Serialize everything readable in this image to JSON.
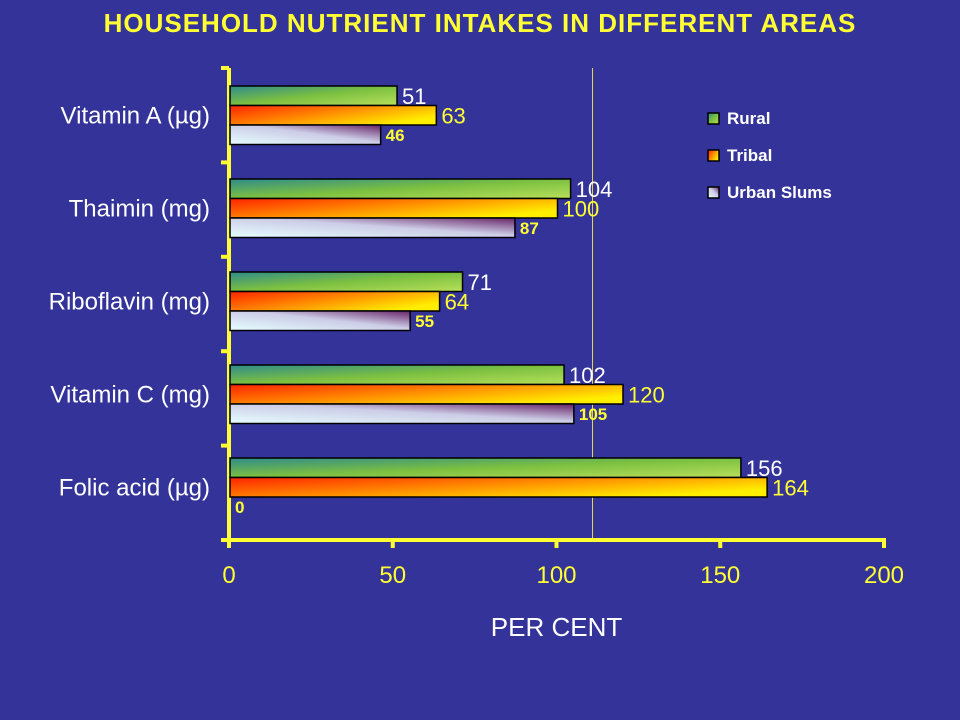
{
  "chart_data": {
    "type": "bar",
    "orientation": "horizontal",
    "title": "HOUSEHOLD NUTRIENT INTAKES IN DIFFERENT AREAS",
    "xlabel": "PER CENT",
    "ylabel": "",
    "xlim": [
      0,
      200
    ],
    "xticks": [
      0,
      50,
      100,
      150,
      200
    ],
    "reference_line": 111,
    "grid": false,
    "legend_position": "top-right",
    "categories": [
      "Vitamin A (µg)",
      "Thaimin (mg)",
      "Riboflavin (mg)",
      "Vitamin C (mg)",
      "Folic acid (µg)"
    ],
    "series": [
      {
        "name": "Rural",
        "values": [
          51,
          104,
          71,
          102,
          156
        ],
        "labels": [
          "51",
          "104",
          "71",
          "102",
          "156"
        ],
        "color": "#66BB44"
      },
      {
        "name": "Tribal",
        "values": [
          63,
          100,
          64,
          120,
          164
        ],
        "labels": [
          "63",
          "100",
          "64",
          "120",
          "164"
        ],
        "color": "#FF6600"
      },
      {
        "name": "Urban Slums",
        "values": [
          46,
          87,
          55,
          105,
          0
        ],
        "labels": [
          "46",
          "87",
          "55",
          "105",
          "0"
        ],
        "color": "#9999CC"
      }
    ],
    "colors": {
      "background": "#333399",
      "axis": "#FFFF33",
      "title": "#FFFF33"
    }
  }
}
